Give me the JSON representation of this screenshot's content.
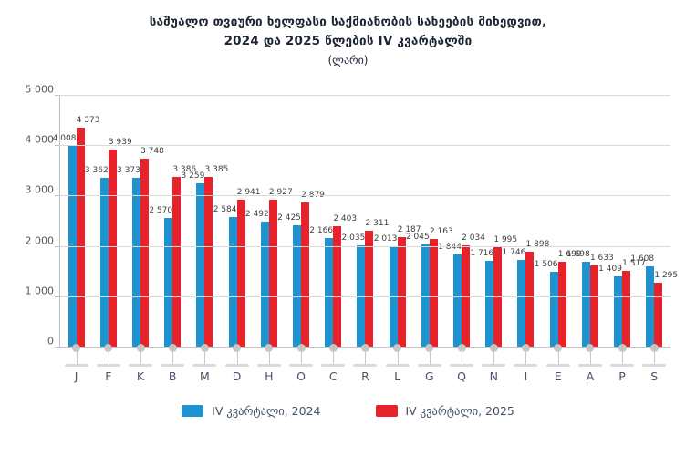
{
  "title": {
    "line1": "საშუალო თვიური ხელფასი საქმიანობის სახეების მიხედვით,",
    "line2": "2024 და 2025 წლების IV კვარტალში",
    "line3": "(ლარი)"
  },
  "colors": {
    "series_2024": "#1e93d0",
    "series_2025": "#e8222a",
    "gridline": "#d9d9d9",
    "axis": "#bfbfbf",
    "category_label": "#44546a",
    "value_label": "#404040"
  },
  "chart_data": {
    "type": "bar",
    "categories": [
      "J",
      "F",
      "K",
      "B",
      "M",
      "D",
      "H",
      "O",
      "C",
      "R",
      "L",
      "G",
      "Q",
      "N",
      "I",
      "E",
      "A",
      "P",
      "S"
    ],
    "series": [
      {
        "name": "IV კვარტალი, 2024",
        "color": "#1e93d0",
        "values": [
          4008,
          3362,
          3373,
          2570,
          3259,
          2584,
          2492,
          2425,
          2166,
          2035,
          2013,
          2045,
          1844,
          1716,
          1746,
          1506,
          1698,
          1409,
          1608
        ]
      },
      {
        "name": "IV კვარტალი, 2025",
        "color": "#e8222a",
        "values": [
          4373,
          3939,
          3748,
          3386,
          3385,
          2941,
          2927,
          2879,
          2403,
          2311,
          2187,
          2163,
          2034,
          1995,
          1898,
          1699,
          1633,
          1517,
          1295
        ]
      }
    ],
    "title": "საშუალო თვიური ხელფასი საქმიანობის სახეების მიხედვით, 2024 და 2025 წლების IV კვარტალში (ლარი)",
    "xlabel": "",
    "ylabel": "",
    "ylim": [
      0,
      5000
    ],
    "ytick_step": 1000,
    "yticks": [
      "0",
      "1 000",
      "2 000",
      "3 000",
      "4 000",
      "5 000"
    ],
    "grid": true,
    "legend_position": "bottom",
    "value_labels_shown": true,
    "thousands_separator": "space"
  },
  "legend": {
    "items": [
      {
        "label": "IV კვარტალი, 2024",
        "color": "#1e93d0"
      },
      {
        "label": "IV კვარტალი, 2025",
        "color": "#e8222a"
      }
    ]
  }
}
